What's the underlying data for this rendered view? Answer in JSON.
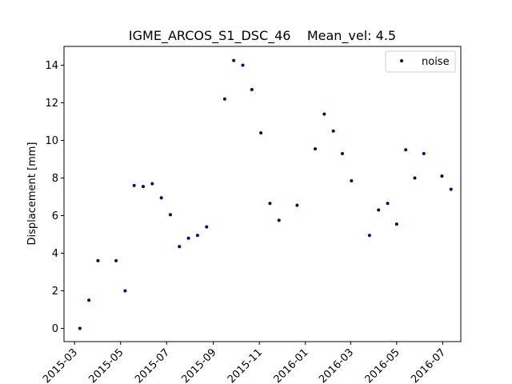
{
  "chart_data": {
    "type": "scatter",
    "title": "IGME_ARCOS_S1_DSC_46    Mean_vel: 4.5",
    "xlabel": "",
    "ylabel": "Displacement [mm]",
    "xlim": [
      "2015-02-15",
      "2016-07-25"
    ],
    "ylim": [
      -0.7,
      15.0
    ],
    "grid": false,
    "legend_position": "top-right",
    "x_ticks": [
      "2015-03",
      "2015-05",
      "2015-07",
      "2015-09",
      "2015-11",
      "2016-01",
      "2016-03",
      "2016-05",
      "2016-07"
    ],
    "y_ticks": [
      0,
      2,
      4,
      6,
      8,
      10,
      12,
      14
    ],
    "series": [
      {
        "name": "noise",
        "color": "#00007f",
        "marker": "point",
        "x": [
          "2015-03-08",
          "2015-03-20",
          "2015-04-01",
          "2015-04-25",
          "2015-05-07",
          "2015-05-19",
          "2015-05-31",
          "2015-06-12",
          "2015-06-24",
          "2015-07-06",
          "2015-07-18",
          "2015-07-30",
          "2015-08-11",
          "2015-08-23",
          "2015-09-16",
          "2015-09-28",
          "2015-10-10",
          "2015-10-22",
          "2015-11-03",
          "2015-11-15",
          "2015-11-27",
          "2015-12-21",
          "2016-01-14",
          "2016-01-26",
          "2016-02-07",
          "2016-02-19",
          "2016-03-02",
          "2016-03-26",
          "2016-04-07",
          "2016-04-19",
          "2016-05-01",
          "2016-05-13",
          "2016-05-25",
          "2016-06-06",
          "2016-06-30",
          "2016-07-12"
        ],
        "y": [
          0.0,
          1.5,
          3.6,
          3.6,
          2.0,
          7.6,
          7.55,
          7.7,
          6.95,
          6.05,
          4.35,
          4.8,
          4.95,
          5.4,
          12.2,
          14.25,
          14.0,
          12.7,
          10.4,
          6.65,
          5.75,
          6.55,
          9.55,
          11.4,
          10.5,
          9.3,
          7.85,
          4.95,
          6.3,
          6.65,
          5.55,
          9.5,
          8.0,
          9.3,
          8.1,
          7.4
        ]
      }
    ]
  }
}
